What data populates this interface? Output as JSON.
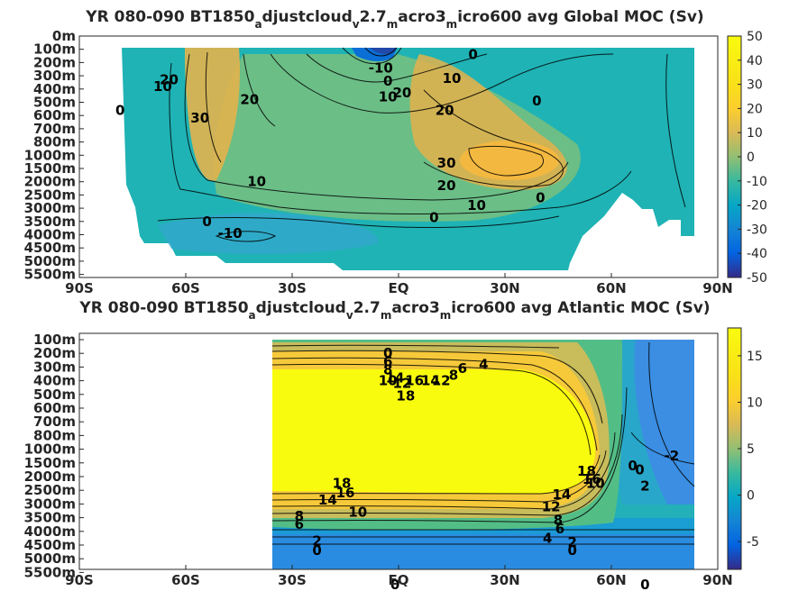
{
  "chart_data": [
    {
      "type": "heatmap",
      "title_parts": [
        "YR 080-090 BT1850",
        "a",
        "djustcloud",
        "v",
        "2.7",
        "m",
        "acro3",
        "m",
        "icro600 avg  Global MOC (Sv)"
      ],
      "x_ticks": [
        "90S",
        "60S",
        "30S",
        "EQ",
        "30N",
        "60N",
        "90N"
      ],
      "x_values": [
        -90,
        -60,
        -30,
        0,
        30,
        60,
        90
      ],
      "y_ticks": [
        "0m",
        "100m",
        "200m",
        "300m",
        "400m",
        "500m",
        "600m",
        "700m",
        "800m",
        "1000m",
        "1500m",
        "2000m",
        "2500m",
        "3000m",
        "3500m",
        "4000m",
        "4500m",
        "5000m",
        "5500m"
      ],
      "colorbar_ticks": [
        "50",
        "40",
        "30",
        "20",
        "10",
        "0",
        "-10",
        "-20",
        "-30",
        "-40",
        "-50"
      ],
      "clim": [
        -50,
        50
      ],
      "contour_labels": [
        {
          "text": "0",
          "lat": 21,
          "lev": 1.4
        },
        {
          "text": "-10",
          "lat": -5,
          "lev": 2.4
        },
        {
          "text": "0",
          "lat": -3,
          "lev": 3.4
        },
        {
          "text": "10",
          "lat": -3,
          "lev": 4.6
        },
        {
          "text": "20",
          "lat": 1,
          "lev": 4.3
        },
        {
          "text": "10",
          "lat": 15,
          "lev": 3.2
        },
        {
          "text": "20",
          "lat": 13,
          "lev": 5.6
        },
        {
          "text": "0",
          "lat": 39,
          "lev": 4.9
        },
        {
          "text": "20",
          "lat": -64.7,
          "lev": 3.3
        },
        {
          "text": "10",
          "lat": -66.5,
          "lev": 3.8
        },
        {
          "text": "0",
          "lat": -78.5,
          "lev": 5.6
        },
        {
          "text": "30",
          "lat": -56,
          "lev": 6.2
        },
        {
          "text": "20",
          "lat": -42,
          "lev": 4.8
        },
        {
          "text": "30",
          "lat": 13.5,
          "lev": 9.6
        },
        {
          "text": "20",
          "lat": 13.5,
          "lev": 11.3
        },
        {
          "text": "10",
          "lat": -40,
          "lev": 11.0
        },
        {
          "text": "10",
          "lat": 22,
          "lev": 12.8
        },
        {
          "text": "0",
          "lat": 10,
          "lev": 13.7
        },
        {
          "text": "0",
          "lat": -54,
          "lev": 14.0
        },
        {
          "text": "-10",
          "lat": -47.5,
          "lev": 14.9
        },
        {
          "text": "0",
          "lat": 40,
          "lev": 12.2
        }
      ]
    },
    {
      "type": "heatmap",
      "title_parts": [
        "YR 080-090 BT1850",
        "a",
        "djustcloud",
        "v",
        "2.7",
        "m",
        "acro3",
        "m",
        "icro600 avg  Atlantic MOC (Sv)"
      ],
      "x_ticks": [
        "90S",
        "60S",
        "30S",
        "EQ",
        "30N",
        "60N",
        "90N"
      ],
      "x_values": [
        -90,
        -60,
        -30,
        0,
        30,
        60,
        90
      ],
      "y_ticks": [
        "100m",
        "200m",
        "300m",
        "400m",
        "500m",
        "600m",
        "700m",
        "800m",
        "1000m",
        "1500m",
        "2000m",
        "2500m",
        "3000m",
        "3500m",
        "4000m",
        "4500m",
        "5000m",
        "5500m"
      ],
      "colorbar_ticks": [
        "15",
        "10",
        "5",
        "0",
        "-5"
      ],
      "clim": [
        -8,
        18
      ],
      "contour_labels": [
        {
          "text": "0",
          "lat": -3,
          "lev": 1.0
        },
        {
          "text": "6",
          "lat": -3,
          "lev": 1.6
        },
        {
          "text": "8",
          "lat": -3,
          "lev": 2.2
        },
        {
          "text": "10",
          "lat": -3,
          "lev": 3.0
        },
        {
          "text": "14",
          "lat": -1,
          "lev": 2.8
        },
        {
          "text": "12",
          "lat": 1,
          "lev": 3.2
        },
        {
          "text": "18",
          "lat": 2,
          "lev": 4.1
        },
        {
          "text": "16",
          "lat": 4.5,
          "lev": 3.0
        },
        {
          "text": "14",
          "lat": 9,
          "lev": 3.0
        },
        {
          "text": "12",
          "lat": 12,
          "lev": 3.0
        },
        {
          "text": "8",
          "lat": 15.5,
          "lev": 2.6
        },
        {
          "text": "6",
          "lat": 18,
          "lev": 2.1
        },
        {
          "text": "4",
          "lat": 24,
          "lev": 1.8
        },
        {
          "text": "18",
          "lat": -16,
          "lev": 10.5
        },
        {
          "text": "16",
          "lat": -15,
          "lev": 11.2
        },
        {
          "text": "14",
          "lat": -20,
          "lev": 11.7
        },
        {
          "text": "10",
          "lat": -11.5,
          "lev": 12.6
        },
        {
          "text": "8",
          "lat": -28,
          "lev": 12.9
        },
        {
          "text": "6",
          "lat": -28,
          "lev": 13.5
        },
        {
          "text": "2",
          "lat": -23,
          "lev": 14.7
        },
        {
          "text": "0",
          "lat": -23,
          "lev": 15.4
        },
        {
          "text": "0",
          "lat": -1,
          "lev": 17.9
        },
        {
          "text": "18",
          "lat": 53,
          "lev": 9.6
        },
        {
          "text": "16",
          "lat": 54.5,
          "lev": 10.2
        },
        {
          "text": "10",
          "lat": 55.5,
          "lev": 10.5
        },
        {
          "text": "14",
          "lat": 46,
          "lev": 11.3
        },
        {
          "text": "12",
          "lat": 43,
          "lev": 12.2
        },
        {
          "text": "8",
          "lat": 45,
          "lev": 13.2
        },
        {
          "text": "6",
          "lat": 45.5,
          "lev": 13.8
        },
        {
          "text": "4",
          "lat": 42,
          "lev": 14.5
        },
        {
          "text": "2",
          "lat": 49,
          "lev": 14.8
        },
        {
          "text": "0",
          "lat": 49,
          "lev": 15.4
        },
        {
          "text": "0",
          "lat": 66,
          "lev": 9.2
        },
        {
          "text": "0",
          "lat": 68,
          "lev": 9.5
        },
        {
          "text": "2",
          "lat": 69.5,
          "lev": 10.7
        },
        {
          "text": "-2",
          "lat": 77,
          "lev": 8.5
        },
        {
          "text": "0",
          "lat": 69.5,
          "lev": 17.9
        }
      ]
    }
  ]
}
